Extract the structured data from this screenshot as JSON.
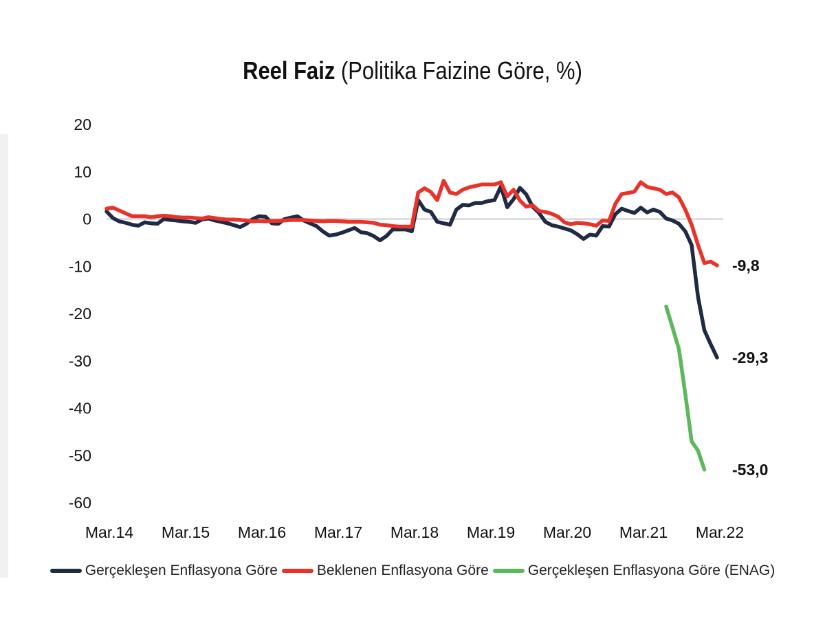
{
  "title": {
    "bold": "Reel Faiz",
    "rest": " (Politika Faizine Göre, %)"
  },
  "chart_data": {
    "type": "line",
    "title": "Reel Faiz (Politika Faizine Göre, %)",
    "xlabel": "",
    "ylabel": "",
    "ylim": [
      -60,
      20
    ],
    "yticks": [
      20,
      10,
      0,
      -10,
      -20,
      -30,
      -40,
      -50,
      -60
    ],
    "xticks": [
      "Mar.14",
      "Mar.15",
      "Mar.16",
      "Mar.17",
      "Mar.18",
      "Mar.19",
      "Mar.20",
      "Mar.21",
      "Mar.22"
    ],
    "x_start": "Mar.14",
    "x_interval": "monthly",
    "grid": "zero line only",
    "legend_position": "bottom",
    "series": [
      {
        "name": "Gerçekleşen Enflasyona Göre",
        "color": "#1f2a44",
        "start_index": 0,
        "end_label": "-29,3",
        "values": [
          1.6,
          0.2,
          -0.5,
          -0.8,
          -1.2,
          -1.4,
          -0.7,
          -0.9,
          -1.0,
          0.0,
          -0.2,
          -0.3,
          -0.5,
          -0.6,
          -0.8,
          -0.1,
          0.1,
          -0.3,
          -0.6,
          -0.9,
          -1.3,
          -1.7,
          -1.0,
          0.0,
          0.6,
          0.5,
          -0.9,
          -1.0,
          0.0,
          0.3,
          0.6,
          -0.3,
          -0.9,
          -1.5,
          -2.6,
          -3.5,
          -3.3,
          -2.9,
          -2.4,
          -1.9,
          -2.8,
          -3.0,
          -3.6,
          -4.5,
          -3.6,
          -2.2,
          -2.2,
          -2.2,
          -2.6,
          4.0,
          2.0,
          1.5,
          -0.6,
          -0.9,
          -1.2,
          2.0,
          3.0,
          2.9,
          3.4,
          3.4,
          3.8,
          4.0,
          6.9,
          2.5,
          4.2,
          6.6,
          5.2,
          2.6,
          1.3,
          -0.6,
          -1.3,
          -1.6,
          -2.0,
          -2.4,
          -3.2,
          -4.2,
          -3.3,
          -3.5,
          -1.5,
          -1.6,
          1.0,
          2.2,
          1.7,
          1.3,
          2.4,
          1.4,
          2.0,
          1.5,
          0.1,
          -0.3,
          -1.0,
          -2.6,
          -5.5,
          -16.5,
          -23.5,
          -26.5,
          -29.3
        ]
      },
      {
        "name": "Beklenen Enflasyona Göre",
        "color": "#e8332a",
        "start_index": 0,
        "end_label": "-9,8",
        "values": [
          2.2,
          2.4,
          1.8,
          1.2,
          0.6,
          0.6,
          0.6,
          0.4,
          0.6,
          0.7,
          0.6,
          0.4,
          0.3,
          0.3,
          0.2,
          0.1,
          0.4,
          0.2,
          0.0,
          -0.1,
          -0.1,
          -0.2,
          -0.3,
          -0.5,
          -0.4,
          -0.5,
          -0.4,
          -0.4,
          -0.3,
          -0.2,
          -0.2,
          -0.2,
          -0.3,
          -0.4,
          -0.5,
          -0.4,
          -0.4,
          -0.5,
          -0.6,
          -0.6,
          -0.6,
          -0.7,
          -0.8,
          -1.2,
          -1.3,
          -1.5,
          -1.6,
          -1.6,
          -1.6,
          5.6,
          6.5,
          5.7,
          4.0,
          8.1,
          5.6,
          5.3,
          6.2,
          6.7,
          7.0,
          7.3,
          7.3,
          7.3,
          7.8,
          4.8,
          6.2,
          3.9,
          2.6,
          2.9,
          1.7,
          1.5,
          1.1,
          0.5,
          -0.7,
          -1.1,
          -0.8,
          -0.9,
          -1.1,
          -1.4,
          -0.3,
          -0.4,
          3.2,
          5.3,
          5.5,
          5.8,
          7.8,
          6.8,
          6.5,
          6.2,
          5.3,
          5.6,
          4.6,
          2.0,
          -1.2,
          -5.5,
          -9.3,
          -9.0,
          -9.8
        ]
      },
      {
        "name": "Gerçekleşen Enflasyona Göre (ENAG)",
        "color": "#5cb85c",
        "start_index": 88,
        "end_label": "-53,0",
        "values": [
          -18.5,
          -23.0,
          -27.5,
          -37.0,
          -47.0,
          -49.0,
          -53.0
        ]
      }
    ]
  }
}
